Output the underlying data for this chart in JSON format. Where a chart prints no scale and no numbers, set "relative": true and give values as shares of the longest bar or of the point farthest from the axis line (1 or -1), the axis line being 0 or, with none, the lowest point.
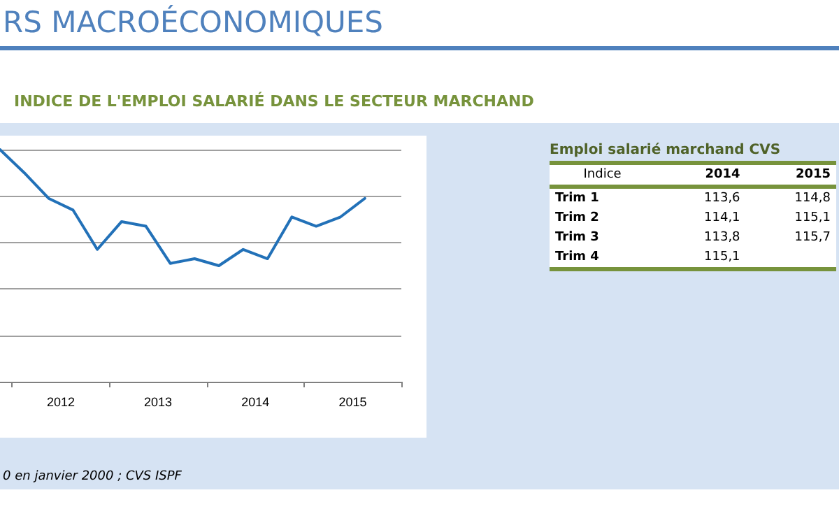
{
  "chart_data": [
    {
      "type": "line",
      "title": "INDICE DE L'EMPLOI SALARIÉ DANS LE SECTEUR MARCHAND",
      "relative": true,
      "x": [
        2011.875,
        2012.125,
        2012.375,
        2012.625,
        2012.875,
        2013.125,
        2013.375,
        2013.625,
        2013.875,
        2014.125,
        2014.375,
        2014.625,
        2014.875,
        2015.125,
        2015.375,
        2015.625
      ],
      "series": [
        {
          "color": "#2271b8",
          "values": [
            1,
            0.9,
            0.79,
            0.74,
            0.57,
            0.69,
            0.67,
            0.51,
            0.53,
            0.5,
            0.57,
            0.53,
            0.71,
            0.67,
            0.71,
            0.79
          ]
        }
      ],
      "xlim": [
        2011.875,
        2016
      ],
      "xticks": [
        {
          "value": 2012,
          "label": null
        },
        {
          "value": 2012.5,
          "label": "2012"
        },
        {
          "value": 2013,
          "label": null
        },
        {
          "value": 2013.5,
          "label": "2013"
        },
        {
          "value": 2014,
          "label": null
        },
        {
          "value": 2014.5,
          "label": "2014"
        },
        {
          "value": 2015,
          "label": null
        },
        {
          "value": 2015.5,
          "label": "2015"
        },
        {
          "value": 2016,
          "label": null
        }
      ],
      "grid": true,
      "marker": "none",
      "line_style": "solid",
      "annotations": [
        "RS MACROÉCONOMIQUES",
        "0 en janvier 2000 ; CVS ISPF"
      ]
    },
    {
      "type": "other",
      "title": "Emploi salarié marchand CVS",
      "xlabel": "Indice",
      "categories": [
        "Trim 1",
        "Trim 2",
        "Trim 3",
        "Trim 4"
      ],
      "series": [
        {
          "name": "2014",
          "values": [
            113.6,
            114.1,
            113.8,
            115.1
          ],
          "value_labels": [
            "113,6",
            "114,1",
            "113,8",
            "115,1"
          ]
        },
        {
          "name": "2015",
          "values": [
            114.8,
            115.1,
            115.7,
            null
          ],
          "value_labels": [
            "114,8",
            "115,1",
            "115,7",
            null
          ]
        }
      ]
    }
  ]
}
